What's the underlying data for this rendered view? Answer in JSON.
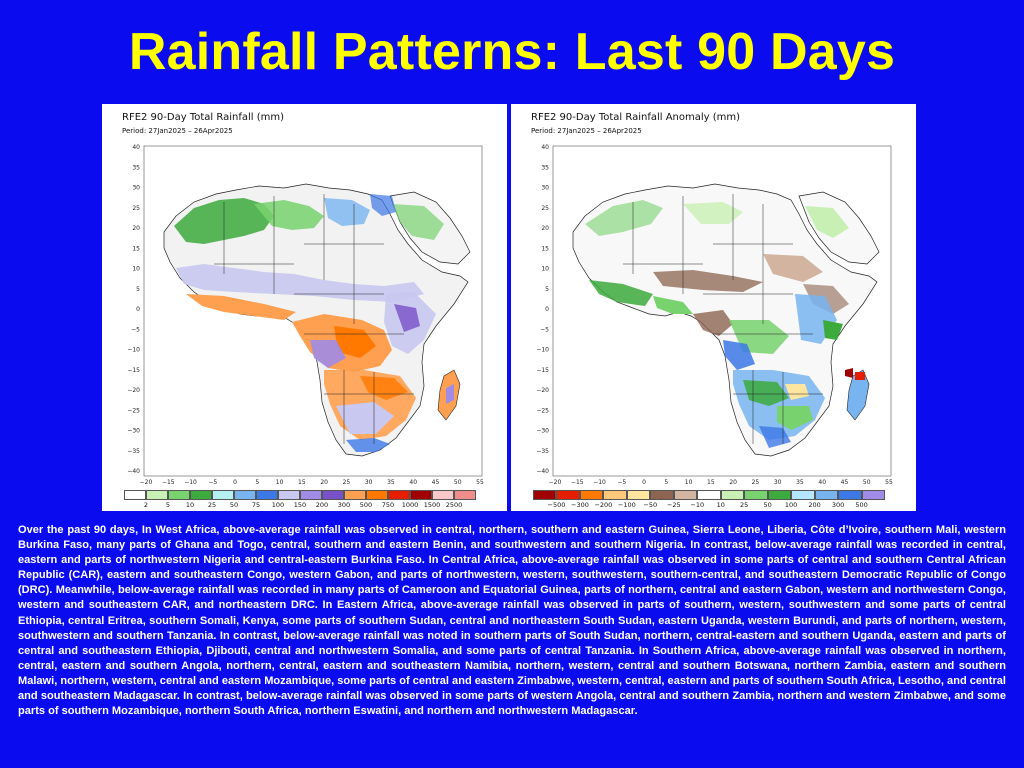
{
  "title": "Rainfall Patterns: Last 90 Days",
  "colors": {
    "background": "#0b0bf0",
    "title": "#ffff00",
    "text": "#ffffff",
    "ocean": "#ffffff",
    "land": "#f4f4f4",
    "border": "#222222"
  },
  "left_map": {
    "title": "RFE2 90-Day Total Rainfall (mm)",
    "period": "Period:  27Jan2025  –  26Apr2025",
    "legend_labels": [
      "2",
      "5",
      "10",
      "25",
      "50",
      "75",
      "100",
      "150",
      "200",
      "300",
      "500",
      "750",
      "1000",
      "1500",
      "2500"
    ],
    "legend_colors": [
      "#ffffff",
      "#c8f0b4",
      "#78d26e",
      "#3caa3c",
      "#b4f0f0",
      "#78b4f0",
      "#3c78e6",
      "#c8c8f0",
      "#a08ce6",
      "#7850c8",
      "#ffa050",
      "#ff7800",
      "#e61e00",
      "#a00000",
      "#fac8c8",
      "#f08c8c"
    ]
  },
  "right_map": {
    "title": "RFE2 90-Day Total Rainfall Anomaly (mm)",
    "period": "Period:  27Jan2025  –  26Apr2025",
    "legend_labels": [
      "−500",
      "−300",
      "−200",
      "−100",
      "−50",
      "−25",
      "−10",
      "10",
      "25",
      "50",
      "100",
      "200",
      "300",
      "500"
    ],
    "legend_colors": [
      "#a00000",
      "#e61e00",
      "#ff7800",
      "#ffc878",
      "#ffe6a0",
      "#8c6450",
      "#d2b4a0",
      "#ffffff",
      "#c8f0b4",
      "#78d26e",
      "#3caa3c",
      "#b4e6ff",
      "#78b4f0",
      "#3c78e6",
      "#a08ce6"
    ]
  },
  "lat_labels": [
    "40",
    "35",
    "30",
    "25",
    "20",
    "15",
    "10",
    "5",
    "0",
    "−5",
    "−10",
    "−15",
    "−20",
    "−25",
    "−30",
    "−35",
    "−40"
  ],
  "lon_labels": [
    "−20",
    "−15",
    "−10",
    "−5",
    "0",
    "5",
    "10",
    "15",
    "20",
    "25",
    "30",
    "35",
    "40",
    "45",
    "50",
    "55"
  ],
  "summary": "Over the past 90 days, In West Africa, above-average rainfall was observed in central, northern, southern and eastern Guinea, Sierra Leone, Liberia, Côte d’Ivoire, southern Mali, western Burkina Faso, many parts of Ghana and Togo, central, southern and eastern Benin, and southwestern and southern Nigeria. In contrast, below-average rainfall was recorded in central, eastern and parts of northwestern Nigeria and central-eastern Burkina Faso. In Central Africa, above-average rainfall was observed in some parts of central and southern Central African Republic (CAR), eastern and southeastern Congo, western Gabon, and parts of northwestern, western, southwestern, southern-central, and southeastern Democratic Republic of Congo (DRC). Meanwhile, below-average rainfall was recorded in many parts of Cameroon and Equatorial Guinea, parts of northern, central and eastern Gabon, western and northwestern Congo, western and southeastern CAR, and northeastern DRC. In Eastern Africa, above-average rainfall was observed in parts of southern, western, southwestern and some parts of  central Ethiopia, central Eritrea, southern Somali, Kenya, some parts of southern Sudan, central and northeastern South Sudan, eastern Uganda, western Burundi, and parts of northern, western, southwestern and southern Tanzania. In contrast, below-average rainfall was noted in southern parts of South Sudan, northern, central-eastern and southern Uganda, eastern and parts of central and southeastern Ethiopia, Djibouti, central and northwestern Somalia, and some parts of central Tanzania. In Southern Africa, above-average rainfall was observed in northern, central, eastern and southern Angola, northern, central, eastern and southeastern Namibia, northern, western, central and southern Botswana, northern Zambia, eastern and southern Malawi, northern, western, central and eastern Mozambique, some parts of central and eastern Zimbabwe, western, central, eastern and parts of southern South Africa, Lesotho, and central and southeastern Madagascar. In contrast, below-average rainfall was observed in some parts of western Angola, central and southern Zambia, northern and western Zimbabwe, and some parts of southern Mozambique, northern South Africa, northern Eswatini, and northern and northwestern Madagascar."
}
